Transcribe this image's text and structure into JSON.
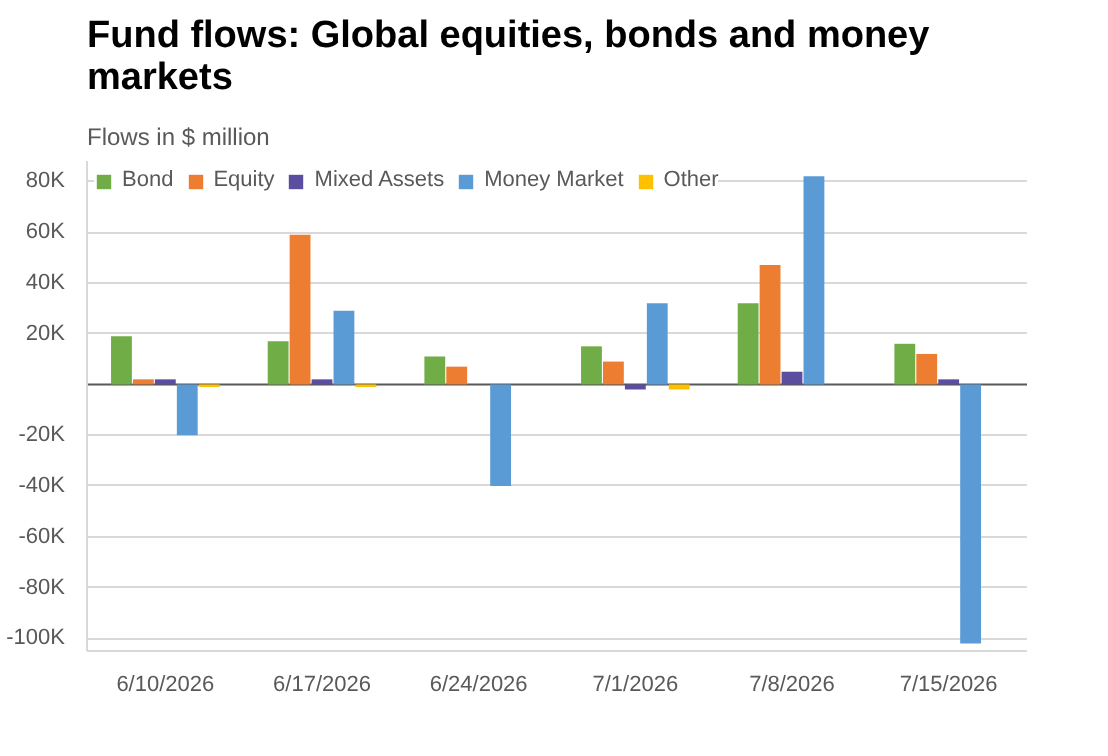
{
  "chart_data": {
    "type": "bar",
    "title": "Fund flows: Global equities, bonds and money markets",
    "subtitle": "Flows in $ million",
    "categories": [
      "6/10/2026",
      "6/17/2026",
      "6/24/2026",
      "7/1/2026",
      "7/8/2026",
      "7/15/2026"
    ],
    "series": [
      {
        "name": "Bond",
        "color": "#70ad47",
        "values": [
          19000,
          17000,
          11000,
          15000,
          32000,
          16000
        ]
      },
      {
        "name": "Equity",
        "color": "#ed7d31",
        "values": [
          2000,
          59000,
          7000,
          9000,
          47000,
          12000
        ]
      },
      {
        "name": "Mixed Assets",
        "color": "#5b4ea0",
        "values": [
          2000,
          2000,
          0,
          -2000,
          5000,
          2000
        ]
      },
      {
        "name": "Money Market",
        "color": "#5b9bd5",
        "values": [
          -20000,
          29000,
          -40000,
          32000,
          82000,
          -102000
        ]
      },
      {
        "name": "Other",
        "color": "#ffc000",
        "values": [
          -1000,
          -1000,
          0,
          -2000,
          0,
          0
        ]
      }
    ],
    "ylim": [
      -105000,
      88000
    ],
    "yticks": [
      {
        "value": -100000,
        "label": "-100K"
      },
      {
        "value": -80000,
        "label": "-80K"
      },
      {
        "value": -60000,
        "label": "-60K"
      },
      {
        "value": -40000,
        "label": "-40K"
      },
      {
        "value": -20000,
        "label": "-20K"
      },
      {
        "value": 20000,
        "label": "20K"
      },
      {
        "value": 40000,
        "label": "40K"
      },
      {
        "value": 60000,
        "label": "60K"
      },
      {
        "value": 80000,
        "label": "80K"
      }
    ],
    "grid": "y",
    "legend": "top left"
  }
}
